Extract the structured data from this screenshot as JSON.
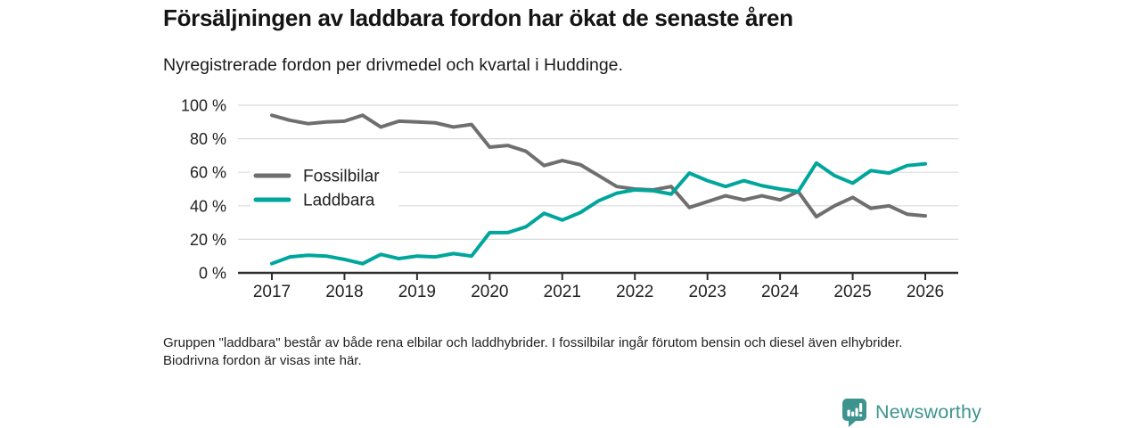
{
  "header": {
    "title": "Försäljningen av laddbara fordon har ökat de senaste åren",
    "subtitle": "Nyregistrerade fordon per drivmedel och kvartal i Huddinge."
  },
  "chart_data": {
    "type": "line",
    "title": "Försäljningen av laddbara fordon har ökat de senaste åren",
    "subtitle": "Nyregistrerade fordon per drivmedel och kvartal i Huddinge.",
    "unit": "%",
    "categories": [
      "2017 Q1",
      "2017 Q2",
      "2017 Q3",
      "2017 Q4",
      "2018 Q1",
      "2018 Q2",
      "2018 Q3",
      "2018 Q4",
      "2019 Q1",
      "2019 Q2",
      "2019 Q3",
      "2019 Q4",
      "2020 Q1",
      "2020 Q2",
      "2020 Q3",
      "2020 Q4",
      "2021 Q1",
      "2021 Q2",
      "2021 Q3",
      "2021 Q4",
      "2022 Q1",
      "2022 Q2",
      "2022 Q3",
      "2022 Q4",
      "2023 Q1",
      "2023 Q2",
      "2023 Q3",
      "2023 Q4",
      "2024 Q1",
      "2024 Q2",
      "2024 Q3",
      "2024 Q4",
      "2025 Q1",
      "2025 Q2",
      "2025 Q3",
      "2025 Q4",
      "2026 Q1"
    ],
    "series": [
      {
        "name": "Fossilbilar",
        "color": "#6F6F6F",
        "values": [
          94,
          91,
          89,
          90,
          90.5,
          94,
          87,
          90.5,
          90,
          89.5,
          87,
          88.5,
          75,
          76,
          72.5,
          64,
          67,
          64.5,
          58,
          51.5,
          50,
          49.5,
          51.5,
          39,
          42.5,
          46,
          43.5,
          46,
          43.5,
          48.5,
          33.5,
          40,
          45,
          38.5,
          40,
          35,
          34
        ]
      },
      {
        "name": "Laddbara",
        "color": "#00A69C",
        "values": [
          5.5,
          9.5,
          10.5,
          10,
          8,
          5.5,
          11,
          8.5,
          10,
          9.5,
          11.5,
          10,
          24,
          24,
          27.5,
          35.5,
          31.5,
          36,
          43,
          47.5,
          49.5,
          49,
          47,
          59.5,
          55,
          51.5,
          55,
          52,
          50,
          48.5,
          65.5,
          58,
          53.5,
          61,
          59.5,
          64,
          65
        ]
      }
    ],
    "ylim": [
      0,
      100
    ],
    "y_ticks": [
      {
        "value": 0,
        "label": "0 %"
      },
      {
        "value": 20,
        "label": "20 %"
      },
      {
        "value": 40,
        "label": "40 %"
      },
      {
        "value": 60,
        "label": "60 %"
      },
      {
        "value": 80,
        "label": "80 %"
      },
      {
        "value": 100,
        "label": "100 %"
      }
    ],
    "x_ticks": [
      {
        "index": 0,
        "label": "2017"
      },
      {
        "index": 4,
        "label": "2018"
      },
      {
        "index": 8,
        "label": "2019"
      },
      {
        "index": 12,
        "label": "2020"
      },
      {
        "index": 16,
        "label": "2021"
      },
      {
        "index": 20,
        "label": "2022"
      },
      {
        "index": 24,
        "label": "2023"
      },
      {
        "index": 28,
        "label": "2024"
      },
      {
        "index": 32,
        "label": "2025"
      },
      {
        "index": 36,
        "label": "2026"
      }
    ],
    "grid": true,
    "legend_position": "inside-top-left",
    "colors": {
      "grid": "#DBDBDB",
      "axis": "#2E2E2E",
      "text": "#222222"
    }
  },
  "footnote": {
    "text": "Gruppen \"laddbara\" består av både rena elbilar och laddhybrider. I fossilbilar ingår förutom bensin och diesel även elhybrider. Biodrivna fordon är visas inte här."
  },
  "branding": {
    "name": "Newsworthy",
    "icon": "bar-chart-speech-bubble-icon",
    "color": "#3D948E"
  }
}
